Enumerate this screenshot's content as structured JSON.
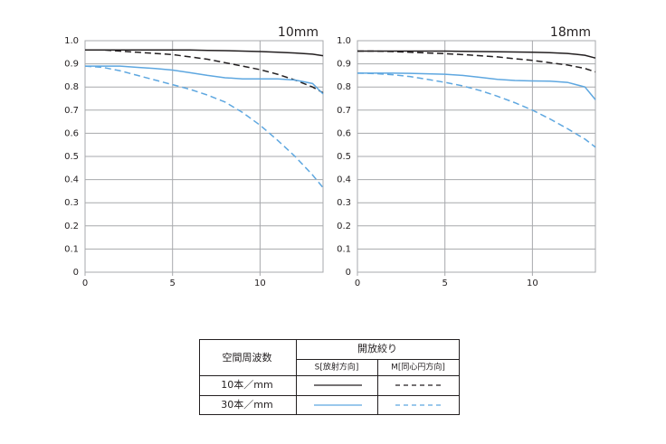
{
  "chart_data": [
    {
      "type": "line",
      "title": "10mm",
      "x": [
        0,
        1,
        2,
        3,
        4,
        5,
        6,
        7,
        8,
        9,
        10,
        11,
        12,
        13,
        13.6
      ],
      "xlim": [
        0,
        13.6
      ],
      "xticks": [
        0,
        5,
        10
      ],
      "ylim": [
        0,
        1
      ],
      "yticks": [
        0,
        0.1,
        0.2,
        0.3,
        0.4,
        0.5,
        0.6,
        0.7,
        0.8,
        0.9,
        {
          "value": 1,
          "label": "1.0"
        }
      ],
      "grid": true,
      "series": [
        {
          "color": "#231f20",
          "style": "solid",
          "values": [
            0.96,
            0.96,
            0.96,
            0.96,
            0.96,
            0.96,
            0.96,
            0.958,
            0.957,
            0.955,
            0.953,
            0.95,
            0.947,
            0.942,
            0.935
          ]
        },
        {
          "color": "#231f20",
          "style": "dashed",
          "values": [
            0.96,
            0.96,
            0.955,
            0.95,
            0.945,
            0.94,
            0.93,
            0.92,
            0.905,
            0.89,
            0.875,
            0.855,
            0.83,
            0.8,
            0.775
          ]
        },
        {
          "color": "#5ea7e0",
          "style": "solid",
          "values": [
            0.89,
            0.89,
            0.89,
            0.885,
            0.88,
            0.873,
            0.862,
            0.85,
            0.84,
            0.835,
            0.835,
            0.835,
            0.83,
            0.815,
            0.77
          ]
        },
        {
          "color": "#5ea7e0",
          "style": "dashed",
          "values": [
            0.89,
            0.885,
            0.87,
            0.85,
            0.83,
            0.81,
            0.79,
            0.765,
            0.735,
            0.69,
            0.635,
            0.57,
            0.5,
            0.42,
            0.365
          ]
        }
      ]
    },
    {
      "type": "line",
      "title": "18mm",
      "x": [
        0,
        1,
        2,
        3,
        4,
        5,
        6,
        7,
        8,
        9,
        10,
        11,
        12,
        13,
        13.6
      ],
      "xlim": [
        0,
        13.6
      ],
      "xticks": [
        0,
        5,
        10
      ],
      "ylim": [
        0,
        1
      ],
      "yticks": [
        0,
        0.1,
        0.2,
        0.3,
        0.4,
        0.5,
        0.6,
        0.7,
        0.8,
        0.9,
        {
          "value": 1,
          "label": "1.0"
        }
      ],
      "grid": true,
      "series": [
        {
          "color": "#231f20",
          "style": "solid",
          "values": [
            0.955,
            0.955,
            0.955,
            0.955,
            0.955,
            0.955,
            0.954,
            0.953,
            0.952,
            0.951,
            0.95,
            0.948,
            0.945,
            0.937,
            0.925
          ]
        },
        {
          "color": "#231f20",
          "style": "dashed",
          "values": [
            0.955,
            0.955,
            0.953,
            0.95,
            0.947,
            0.944,
            0.94,
            0.935,
            0.93,
            0.922,
            0.915,
            0.905,
            0.895,
            0.88,
            0.865
          ]
        },
        {
          "color": "#5ea7e0",
          "style": "solid",
          "values": [
            0.86,
            0.86,
            0.86,
            0.859,
            0.857,
            0.855,
            0.85,
            0.842,
            0.833,
            0.828,
            0.826,
            0.825,
            0.82,
            0.8,
            0.745
          ]
        },
        {
          "color": "#5ea7e0",
          "style": "dashed",
          "values": [
            0.86,
            0.858,
            0.853,
            0.845,
            0.833,
            0.82,
            0.805,
            0.785,
            0.76,
            0.732,
            0.7,
            0.662,
            0.62,
            0.575,
            0.54
          ]
        }
      ]
    }
  ],
  "legend_table": {
    "header": "空間周波数",
    "group_header": "開放絞り",
    "columns": [
      {
        "label": "S[放射方向]",
        "style": "solid"
      },
      {
        "label": "M[同心円方向]",
        "style": "dashed"
      }
    ],
    "rows": [
      {
        "label": "10本／mm",
        "color": "#231f20"
      },
      {
        "label": "30本／mm",
        "color": "#5ea7e0"
      }
    ]
  }
}
